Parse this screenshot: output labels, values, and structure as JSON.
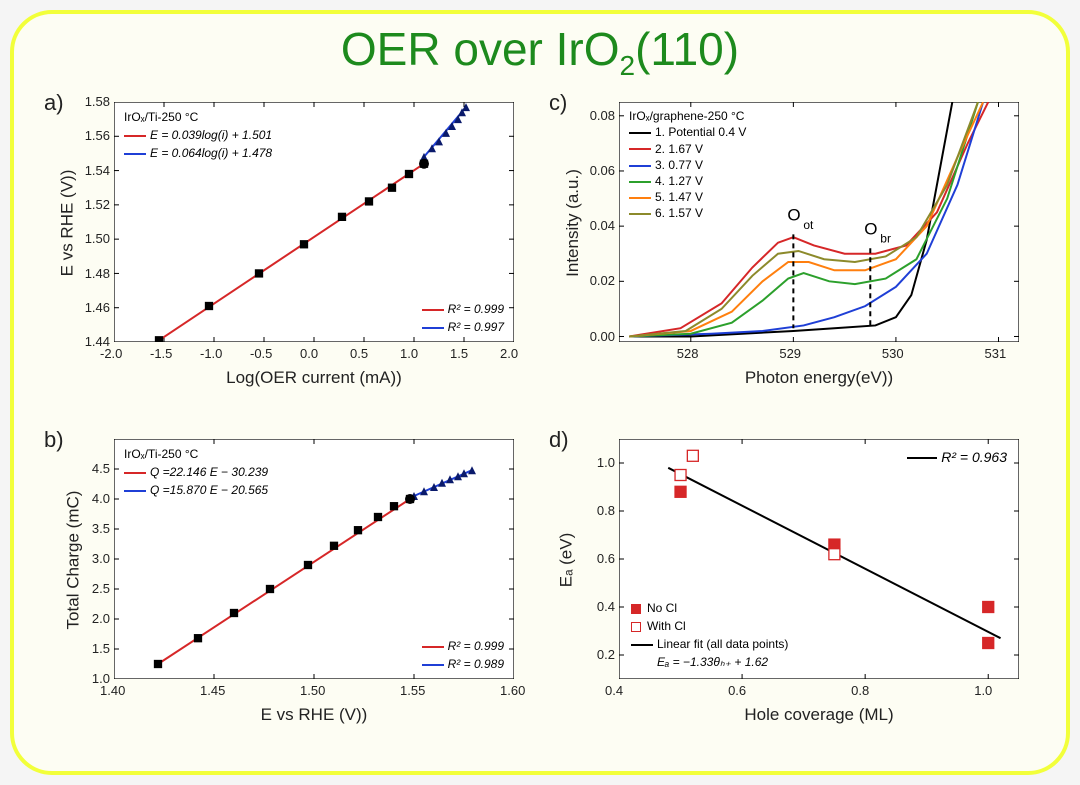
{
  "title_html": "OER over IrO<sub>2</sub>(110)",
  "colors": {
    "red": "#d62728",
    "blue": "#1f3fd6",
    "black": "#000000",
    "green": "#2ca02c",
    "orange": "#ff7f0e",
    "olive": "#8c8a2b",
    "frame_border": "#f2ff3a",
    "frame_bg": "#fdfdf3"
  },
  "panel_a": {
    "label": "a)",
    "sample": "IrOₓ/Ti-250 °C",
    "eq_red": "E = 0.039log(i) + 1.501",
    "eq_blue": "E = 0.064log(i) + 1.478",
    "r2_red": "R² = 0.999",
    "r2_blue": "R² = 0.997",
    "x_label": "Log(OER current (mA))",
    "y_label": "E vs RHE (V))",
    "xlim": [
      -2.0,
      2.0
    ],
    "ylim": [
      1.44,
      1.58
    ],
    "xticks": [
      "-2.0",
      "-1.5",
      "-1.0",
      "-0.5",
      "0.0",
      "0.5",
      "1.0",
      "1.5",
      "2.0"
    ],
    "yticks": [
      "1.44",
      "1.46",
      "1.48",
      "1.50",
      "1.52",
      "1.54",
      "1.56",
      "1.58"
    ],
    "red_points": [
      [
        -1.55,
        1.441
      ],
      [
        -1.05,
        1.461
      ],
      [
        -0.55,
        1.48
      ],
      [
        -0.1,
        1.497
      ],
      [
        0.28,
        1.513
      ],
      [
        0.55,
        1.522
      ],
      [
        0.78,
        1.53
      ],
      [
        0.95,
        1.538
      ],
      [
        1.1,
        1.544
      ]
    ],
    "blue_points": [
      [
        1.1,
        1.548
      ],
      [
        1.18,
        1.553
      ],
      [
        1.25,
        1.557
      ],
      [
        1.32,
        1.562
      ],
      [
        1.38,
        1.566
      ],
      [
        1.44,
        1.57
      ],
      [
        1.48,
        1.574
      ],
      [
        1.52,
        1.577
      ]
    ]
  },
  "panel_b": {
    "label": "b)",
    "sample": "IrOₓ/Ti-250 °C",
    "eq_red": "Q =22.146 E − 30.239",
    "eq_blue": "Q =15.870 E − 20.565",
    "r2_red": "R² = 0.999",
    "r2_blue": "R² = 0.989",
    "x_label": "E vs RHE (V))",
    "y_label": "Total Charge (mC)",
    "xlim": [
      1.4,
      1.6
    ],
    "ylim": [
      1.0,
      5.0
    ],
    "xticks": [
      "1.40",
      "1.45",
      "1.50",
      "1.55",
      "1.60"
    ],
    "yticks": [
      "1.0",
      "1.5",
      "2.0",
      "2.5",
      "3.0",
      "3.5",
      "4.0",
      "4.5"
    ],
    "red_points": [
      [
        1.422,
        1.25
      ],
      [
        1.442,
        1.68
      ],
      [
        1.46,
        2.1
      ],
      [
        1.478,
        2.5
      ],
      [
        1.497,
        2.9
      ],
      [
        1.51,
        3.22
      ],
      [
        1.522,
        3.48
      ],
      [
        1.532,
        3.7
      ],
      [
        1.54,
        3.88
      ],
      [
        1.548,
        4.0
      ]
    ],
    "blue_points": [
      [
        1.55,
        4.05
      ],
      [
        1.555,
        4.13
      ],
      [
        1.56,
        4.2
      ],
      [
        1.564,
        4.27
      ],
      [
        1.568,
        4.33
      ],
      [
        1.572,
        4.38
      ],
      [
        1.575,
        4.43
      ],
      [
        1.579,
        4.48
      ]
    ]
  },
  "panel_c": {
    "label": "c)",
    "sample": "IrOₓ/graphene-250 °C",
    "x_label": "Photon energy(eV))",
    "y_label": "Intensity (a.u.)",
    "xlim": [
      527.3,
      531.2
    ],
    "ylim": [
      -0.002,
      0.085
    ],
    "xticks": [
      "528",
      "529",
      "530",
      "531"
    ],
    "yticks": [
      "0.00",
      "0.02",
      "0.04",
      "0.06",
      "0.08"
    ],
    "ann_oot": "O",
    "ann_oot_sub": "ot",
    "ann_obr": "O",
    "ann_obr_sub": "br",
    "oot_x": 529.0,
    "obr_x": 529.75,
    "legend": [
      {
        "label": "1. Potential 0.4 V",
        "color": "#000000"
      },
      {
        "label": "2. 1.67 V",
        "color": "#d62728"
      },
      {
        "label": "3. 0.77 V",
        "color": "#1f3fd6"
      },
      {
        "label": "4. 1.27 V",
        "color": "#2ca02c"
      },
      {
        "label": "5. 1.47 V",
        "color": "#ff7f0e"
      },
      {
        "label": "6. 1.57 V",
        "color": "#8c8a2b"
      }
    ],
    "curves": {
      "c1": [
        [
          527.4,
          0.0
        ],
        [
          528.0,
          0.0
        ],
        [
          528.5,
          0.001
        ],
        [
          529.0,
          0.002
        ],
        [
          529.4,
          0.003
        ],
        [
          529.8,
          0.004
        ],
        [
          530.0,
          0.007
        ],
        [
          530.15,
          0.015
        ],
        [
          530.3,
          0.035
        ],
        [
          530.45,
          0.065
        ],
        [
          530.55,
          0.085
        ]
      ],
      "c2": [
        [
          527.4,
          0.0
        ],
        [
          527.9,
          0.003
        ],
        [
          528.3,
          0.012
        ],
        [
          528.6,
          0.025
        ],
        [
          528.85,
          0.034
        ],
        [
          529.0,
          0.036
        ],
        [
          529.2,
          0.033
        ],
        [
          529.5,
          0.03
        ],
        [
          529.8,
          0.03
        ],
        [
          530.1,
          0.033
        ],
        [
          530.4,
          0.045
        ],
        [
          530.7,
          0.07
        ],
        [
          530.9,
          0.085
        ]
      ],
      "c3": [
        [
          527.4,
          0.0
        ],
        [
          528.2,
          0.001
        ],
        [
          528.7,
          0.002
        ],
        [
          529.1,
          0.004
        ],
        [
          529.4,
          0.007
        ],
        [
          529.7,
          0.011
        ],
        [
          530.0,
          0.018
        ],
        [
          530.3,
          0.03
        ],
        [
          530.6,
          0.055
        ],
        [
          530.85,
          0.085
        ]
      ],
      "c4": [
        [
          527.4,
          0.0
        ],
        [
          528.0,
          0.001
        ],
        [
          528.4,
          0.005
        ],
        [
          528.7,
          0.013
        ],
        [
          528.95,
          0.021
        ],
        [
          529.1,
          0.023
        ],
        [
          529.35,
          0.02
        ],
        [
          529.6,
          0.019
        ],
        [
          529.9,
          0.021
        ],
        [
          530.2,
          0.028
        ],
        [
          530.5,
          0.05
        ],
        [
          530.8,
          0.085
        ]
      ],
      "c5": [
        [
          527.4,
          0.0
        ],
        [
          528.0,
          0.002
        ],
        [
          528.4,
          0.009
        ],
        [
          528.7,
          0.02
        ],
        [
          528.95,
          0.027
        ],
        [
          529.15,
          0.027
        ],
        [
          529.4,
          0.024
        ],
        [
          529.7,
          0.024
        ],
        [
          530.0,
          0.028
        ],
        [
          530.3,
          0.04
        ],
        [
          530.6,
          0.065
        ],
        [
          530.85,
          0.085
        ]
      ],
      "c6": [
        [
          527.4,
          0.0
        ],
        [
          527.95,
          0.002
        ],
        [
          528.3,
          0.01
        ],
        [
          528.6,
          0.022
        ],
        [
          528.85,
          0.03
        ],
        [
          529.05,
          0.031
        ],
        [
          529.3,
          0.028
        ],
        [
          529.6,
          0.027
        ],
        [
          529.9,
          0.029
        ],
        [
          530.2,
          0.036
        ],
        [
          530.5,
          0.055
        ],
        [
          530.8,
          0.085
        ]
      ]
    }
  },
  "panel_d": {
    "label": "d)",
    "x_label": "Hole coverage (ML)",
    "y_label": "Eₐ (eV)",
    "xlim": [
      0.4,
      1.05
    ],
    "ylim": [
      0.1,
      1.1
    ],
    "xticks": [
      "0.4",
      "0.6",
      "0.8",
      "1.0"
    ],
    "yticks": [
      "0.2",
      "0.4",
      "0.6",
      "0.8",
      "1.0"
    ],
    "r2": "R² = 0.963",
    "fit_eq": "Eₐ = −1.33θₕ₊ + 1.62",
    "fit_note": "Linear fit (all data points)",
    "legend_noCl": "No Cl",
    "legend_withCl": "With Cl",
    "no_cl": [
      [
        0.5,
        0.88
      ],
      [
        0.75,
        0.66
      ],
      [
        1.0,
        0.4
      ],
      [
        1.0,
        0.25
      ]
    ],
    "with_cl": [
      [
        0.5,
        0.95
      ],
      [
        0.52,
        1.03
      ],
      [
        0.75,
        0.62
      ]
    ],
    "fit_line": [
      [
        0.48,
        0.98
      ],
      [
        1.02,
        0.27
      ]
    ]
  }
}
